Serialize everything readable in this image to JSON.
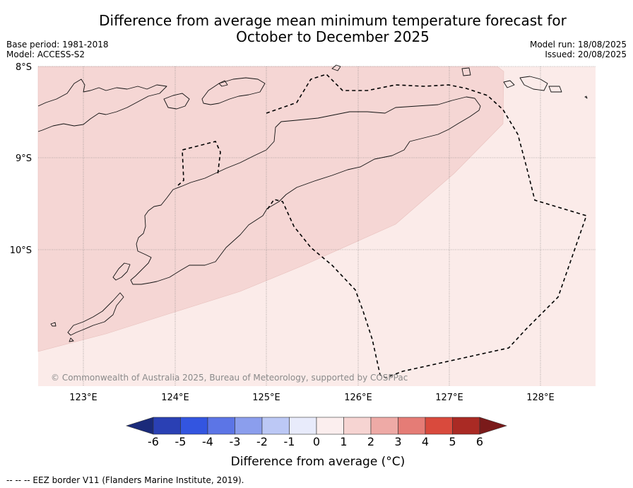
{
  "title": {
    "line1": "Difference from average mean minimum temperature forecast for",
    "line2": "October to December 2025"
  },
  "meta": {
    "base_period": "Base period: 1981-2018",
    "model": "Model: ACCESS-S2",
    "model_run": "Model run: 18/08/2025",
    "issued": "Issued: 20/08/2025"
  },
  "map": {
    "lat_labels": [
      "8°S",
      "9°S",
      "10°S"
    ],
    "lon_labels": [
      "123°E",
      "124°E",
      "125°E",
      "126°E",
      "127°E",
      "128°E"
    ],
    "copyright": "© Commonwealth of Australia 2025, Bureau of Meteorology, supported by COSPPac",
    "fill_colors": {
      "band_1_2": "#f5d6d4",
      "band_0_1": "#fbebe9"
    },
    "forecast_anomaly_classes": [
      "1 to 2",
      "0 to 1"
    ]
  },
  "colorbar": {
    "ticks": [
      "-6",
      "-5",
      "-4",
      "-3",
      "-2",
      "-1",
      "0",
      "1",
      "2",
      "3",
      "4",
      "5",
      "6"
    ],
    "colors": [
      "#1a2a7a",
      "#2a40b4",
      "#3355e0",
      "#5c75e6",
      "#8b9eed",
      "#bcc8f5",
      "#e8ebfb",
      "#fbeeee",
      "#f6d4d2",
      "#eeaaa6",
      "#e57c76",
      "#d94a3d",
      "#aa2a24",
      "#7a1a1a"
    ],
    "label": "Difference from average (°C)"
  },
  "footnote": "--  --  -- EEZ border V11 (Flanders Marine Institute, 2019)."
}
